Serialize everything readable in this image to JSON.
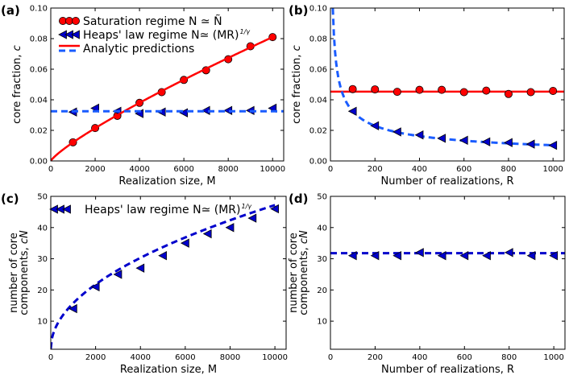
{
  "colors": {
    "saturation": "#ff0000",
    "heaps": "#0000cc",
    "analytic_dash": "#1a5cff",
    "marker_edge": "#000000"
  },
  "chart_data": [
    {
      "id": "a",
      "panel_label": "(a)",
      "type": "line+scatter",
      "xlabel": "Realization size, M",
      "ylabel_parts": [
        "core fraction, ",
        "c"
      ],
      "xlim": [
        0,
        10500
      ],
      "ylim": [
        0,
        0.1
      ],
      "xticks": [
        0,
        2000,
        4000,
        6000,
        8000,
        10000
      ],
      "yticks": [
        "0.00",
        "0.02",
        "0.04",
        "0.06",
        "0.08",
        "0.10"
      ],
      "legend": {
        "placement": "top-left",
        "entries": [
          {
            "marker": "circle",
            "label": "Saturation regime N ≃ Ñ"
          },
          {
            "marker": "triangle-left",
            "label": "Heaps' law regime N≃ (MR)",
            "sup": "1/γ"
          },
          {
            "marker": "line-red-dashed-blue",
            "label": "Analytic predictions"
          }
        ]
      },
      "series": [
        {
          "kind": "scatter",
          "marker": "circle",
          "color": "saturation",
          "x": [
            1000,
            2000,
            3000,
            4000,
            5000,
            6000,
            7000,
            8000,
            9000,
            10000
          ],
          "y": [
            0.0122,
            0.0215,
            0.0295,
            0.038,
            0.045,
            0.053,
            0.0593,
            0.0665,
            0.075,
            0.081
          ]
        },
        {
          "kind": "scatter",
          "marker": "triangle-left",
          "color": "heaps",
          "x": [
            1000,
            2000,
            3000,
            4000,
            5000,
            6000,
            7000,
            8000,
            9000,
            10000
          ],
          "y": [
            0.032,
            0.0345,
            0.0325,
            0.031,
            0.032,
            0.0315,
            0.033,
            0.033,
            0.033,
            0.0345
          ]
        },
        {
          "kind": "curve",
          "style": "solid",
          "color": "saturation",
          "formula": "0.081*(x/10000)^0.826",
          "x_range": [
            0,
            10000
          ]
        },
        {
          "kind": "curve",
          "style": "dashed",
          "color": "analytic_dash",
          "formula": "0.0325",
          "x_range": [
            0,
            10500
          ]
        }
      ]
    },
    {
      "id": "b",
      "panel_label": "(b)",
      "type": "line+scatter",
      "xlabel": "Number of realizations, R",
      "ylabel_parts": [
        "core fraction, ",
        "c"
      ],
      "xlim": [
        0,
        1050
      ],
      "ylim": [
        0,
        0.1
      ],
      "xticks": [
        0,
        200,
        400,
        600,
        800,
        1000
      ],
      "yticks": [
        "0.00",
        "0.02",
        "0.04",
        "0.06",
        "0.08",
        "0.10"
      ],
      "series": [
        {
          "kind": "curve",
          "style": "solid",
          "color": "saturation",
          "formula": "0.0453",
          "x_range": [
            0,
            1050
          ]
        },
        {
          "kind": "curve",
          "style": "dashed",
          "color": "analytic_dash",
          "formula": "0.325/sqrt(x)",
          "x_range": [
            10.6,
            1000
          ]
        },
        {
          "kind": "scatter",
          "marker": "circle",
          "color": "saturation",
          "x": [
            100,
            200,
            300,
            400,
            500,
            600,
            700,
            800,
            900,
            1000
          ],
          "y": [
            0.047,
            0.0468,
            0.0452,
            0.0465,
            0.0465,
            0.045,
            0.046,
            0.0438,
            0.045,
            0.0458
          ]
        },
        {
          "kind": "scatter",
          "marker": "triangle-left",
          "color": "heaps",
          "x": [
            100,
            200,
            300,
            400,
            500,
            600,
            700,
            800,
            900,
            1000
          ],
          "y": [
            0.0325,
            0.023,
            0.019,
            0.017,
            0.0148,
            0.0135,
            0.0125,
            0.012,
            0.011,
            0.0102
          ]
        }
      ]
    },
    {
      "id": "c",
      "panel_label": "(c)",
      "type": "line+scatter",
      "xlabel": "Realization size, M",
      "ylabel_lines": [
        "number of core",
        "components, "
      ],
      "ylabel_italic": "cN",
      "xlim": [
        0,
        10500
      ],
      "ylim": [
        1,
        50
      ],
      "xticks": [
        0,
        2000,
        4000,
        6000,
        8000,
        10000
      ],
      "yticks": [
        "10",
        "20",
        "30",
        "40",
        "50"
      ],
      "legend": {
        "placement": "top-left",
        "entries": [
          {
            "marker": "triangle-left",
            "label": "Heaps' law regime N≃ (MR)",
            "sup": "1/γ"
          }
        ]
      },
      "series": [
        {
          "kind": "curve",
          "style": "dashed",
          "color": "heaps",
          "formula": "0.46*sqrt(x)",
          "x_range": [
            0,
            10000
          ]
        },
        {
          "kind": "scatter",
          "marker": "triangle-left",
          "color": "heaps",
          "x": [
            1000,
            2000,
            3000,
            4000,
            5000,
            6000,
            7000,
            8000,
            9000,
            10000
          ],
          "y": [
            14,
            21,
            25,
            27,
            31,
            35,
            38,
            40,
            43,
            46
          ]
        }
      ]
    },
    {
      "id": "d",
      "panel_label": "(d)",
      "type": "line+scatter",
      "xlabel": "Number of realizations, R",
      "ylabel_lines": [
        "number of core",
        "components, "
      ],
      "ylabel_italic": "cN",
      "xlim": [
        0,
        1050
      ],
      "ylim": [
        1,
        50
      ],
      "xticks": [
        0,
        200,
        400,
        600,
        800,
        1000
      ],
      "yticks": [
        "10",
        "20",
        "30",
        "40",
        "50"
      ],
      "series": [
        {
          "kind": "curve",
          "style": "dashed",
          "color": "heaps",
          "formula": "31.8",
          "x_range": [
            0,
            1050
          ]
        },
        {
          "kind": "scatter",
          "marker": "triangle-left",
          "color": "heaps",
          "x": [
            100,
            200,
            300,
            400,
            500,
            600,
            700,
            800,
            900,
            1000
          ],
          "y": [
            31,
            31,
            31,
            32,
            31,
            31,
            31,
            32,
            31,
            31
          ]
        }
      ]
    }
  ]
}
